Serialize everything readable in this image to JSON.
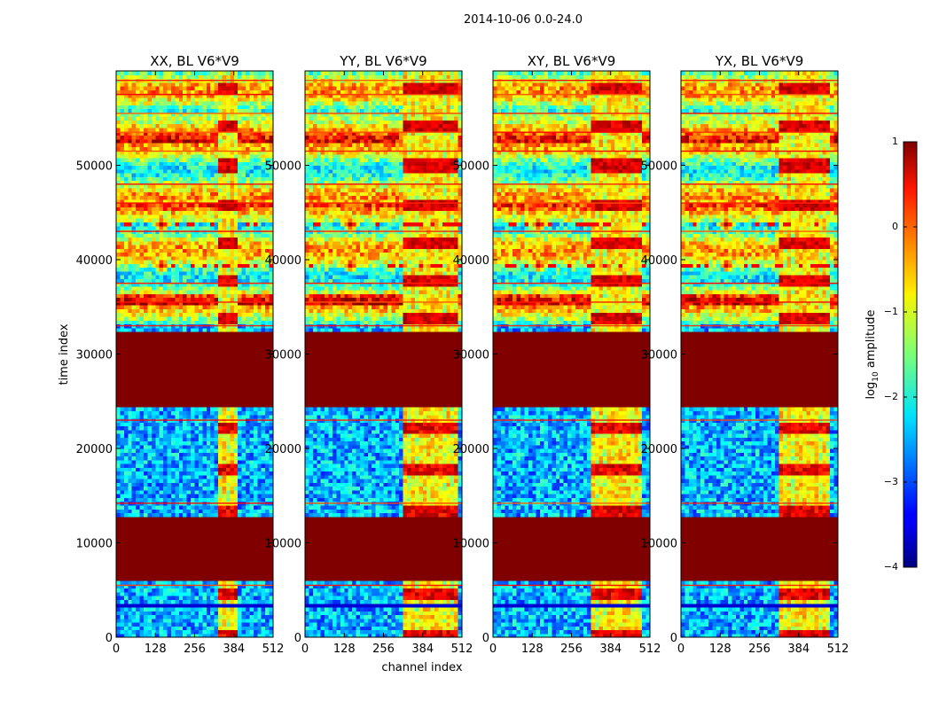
{
  "figure": {
    "suptitle": "2014-10-06 0.0-24.0",
    "xlabel": "channel index",
    "ylabel": "time index"
  },
  "chart_data": {
    "type": "heatmap",
    "title": "2014-10-06 0.0-24.0",
    "xlabel": "channel index",
    "ylabel": "time index",
    "xlim": [
      0,
      512
    ],
    "ylim": [
      0,
      60000
    ],
    "x_ticks": [
      0,
      128,
      256,
      384,
      512
    ],
    "x_tick_labels": [
      "0",
      "128",
      "256",
      "384",
      "512"
    ],
    "y_ticks": [
      0,
      10000,
      20000,
      30000,
      40000,
      50000
    ],
    "y_tick_labels": [
      "0",
      "10000",
      "20000",
      "30000",
      "40000",
      "50000"
    ],
    "colormap": "jet",
    "panels": [
      {
        "title": "XX, BL V6*V9",
        "bright_channels": [
          330,
          400
        ],
        "rfi_strength": 0.9
      },
      {
        "title": "YY, BL V6*V9",
        "bright_channels": [
          325,
          500
        ],
        "rfi_strength": 0.85
      },
      {
        "title": "XY, BL V6*V9",
        "bright_channels": [
          325,
          480
        ],
        "rfi_strength": 0.8
      },
      {
        "title": "YX, BL V6*V9",
        "bright_channels": [
          325,
          490
        ],
        "rfi_strength": 0.8
      }
    ],
    "saturated_time_bands": [
      [
        6000,
        12600
      ],
      [
        24500,
        32300
      ]
    ],
    "horizontal_lines": [
      5500,
      14200,
      23000,
      33000,
      35500,
      37500,
      43000,
      46000,
      48000,
      51500,
      53500,
      55500,
      57500,
      59000
    ],
    "bright_time_bands": [
      [
        35300,
        36300
      ],
      [
        44000,
        46000
      ],
      [
        52500,
        55500
      ]
    ],
    "point_sources": [
      {
        "channel": 150,
        "time": 39500
      },
      {
        "channel": 150,
        "time": 43800
      }
    ],
    "colorbar": {
      "label": "log10 amplitude",
      "label_base": "log",
      "label_sub": "10",
      "label_rest": " amplitude",
      "range": [
        -4,
        1
      ],
      "ticks": [
        1,
        0,
        -1,
        -2,
        -3,
        -4
      ],
      "tick_labels": [
        "1",
        "0",
        "−1",
        "−2",
        "−3",
        "−4"
      ]
    }
  }
}
